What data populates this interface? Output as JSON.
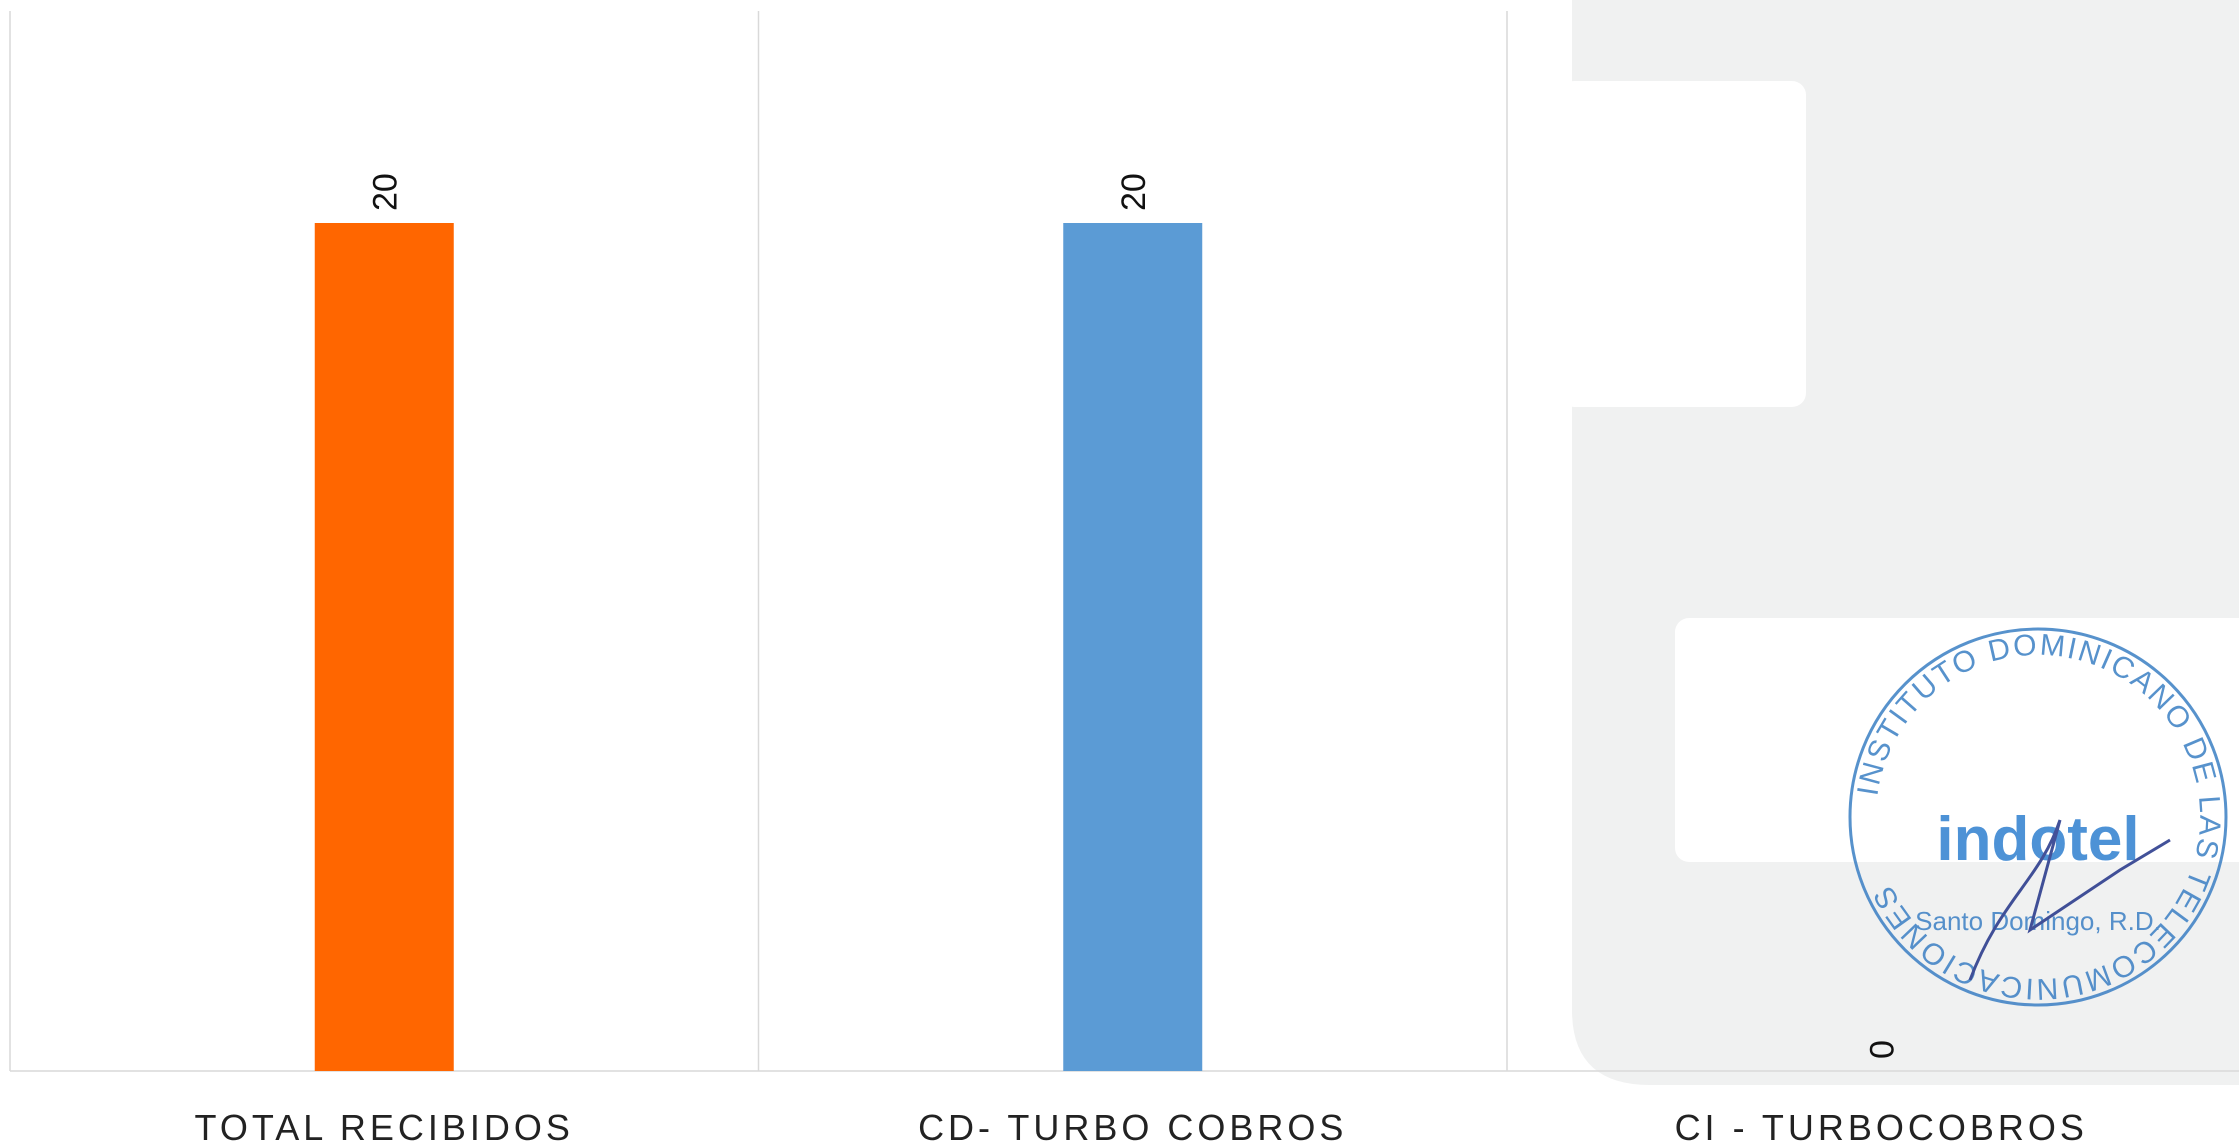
{
  "chart_data": {
    "type": "bar",
    "categories": [
      "TOTAL RECIBIDOS",
      "CD- TURBO COBROS",
      "CI - TURBOCOBROS"
    ],
    "values": [
      20,
      20,
      0
    ],
    "colors": [
      "#ff6600",
      "#5b9bd5",
      "#a5a5a5"
    ],
    "ylim": [
      0,
      25
    ],
    "grid": false
  },
  "stamp": {
    "ring": "INSTITUTO DOMINICANO DE LAS TELECOMUNICACIONES",
    "logo": "indotel",
    "city": "Santo Domingo, R.D."
  }
}
